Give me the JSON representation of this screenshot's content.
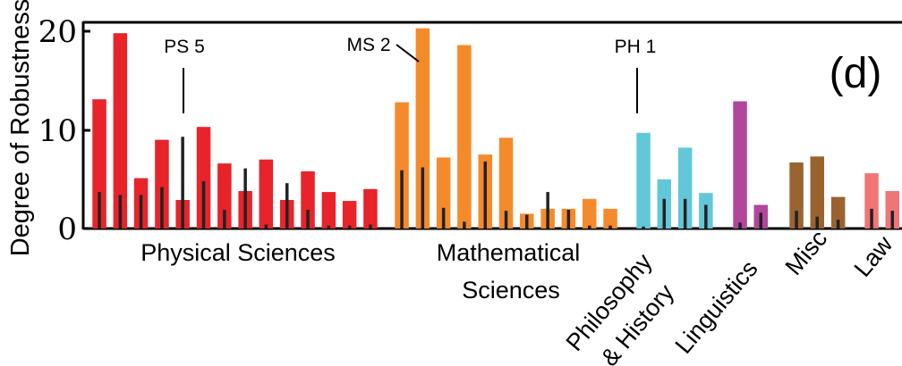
{
  "chart_data": {
    "type": "bar",
    "ylabel": "Degree of Robustness",
    "ylim": [
      0,
      20.3
    ],
    "yticks": [
      0,
      10,
      20
    ],
    "panel_label": "(d)",
    "groups": [
      {
        "name": "Physical Sciences",
        "color": "#e8232a",
        "values": [
          13.1,
          19.8,
          5.1,
          9.0,
          2.9,
          10.3,
          6.6,
          3.8,
          7.0,
          2.9,
          5.8,
          3.7,
          2.8,
          4.0
        ],
        "inner_values": [
          3.7,
          3.4,
          3.4,
          4.2,
          9.3,
          4.8,
          1.9,
          6.1,
          0.4,
          4.6,
          1.9,
          0.3,
          0.3,
          0.4
        ]
      },
      {
        "name": "Mathematical Sciences",
        "color": "#f58a2b",
        "values": [
          12.8,
          20.3,
          7.2,
          18.6,
          7.5,
          9.2,
          1.5,
          2.0,
          2.0,
          3.0,
          2.0
        ],
        "inner_values": [
          5.9,
          6.2,
          2.1,
          0.7,
          6.8,
          1.8,
          1.4,
          3.7,
          1.9,
          0.3,
          0.3
        ]
      },
      {
        "name": "Philosophy & History",
        "color": "#62c7d9",
        "values": [
          9.7,
          5.0,
          8.2,
          3.6
        ],
        "inner_values": [
          0.2,
          3.0,
          3.0,
          2.4
        ]
      },
      {
        "name": "Linguistics",
        "color": "#b0479a",
        "values": [
          12.9,
          2.4
        ],
        "inner_values": [
          0.6,
          1.6
        ]
      },
      {
        "name": "Misc",
        "color": "#9b6330",
        "values": [
          6.7,
          7.3,
          3.2
        ],
        "inner_values": [
          1.8,
          1.2,
          0.9
        ]
      },
      {
        "name": "Law",
        "color": "#f07576",
        "values": [
          5.6,
          3.8
        ],
        "inner_values": [
          2.0,
          1.8
        ]
      }
    ],
    "category_labels": [
      "Physical Sciences",
      "Mathematical",
      "Sciences",
      "Philosophy",
      "& History",
      "Linguistics",
      "Misc",
      "Law"
    ],
    "annotations": [
      {
        "text": "PS 5",
        "group": 0,
        "index": 4
      },
      {
        "text": "MS 2",
        "group": 1,
        "index": 1
      },
      {
        "text": "PH 1",
        "group": 2,
        "index": 0
      }
    ]
  }
}
